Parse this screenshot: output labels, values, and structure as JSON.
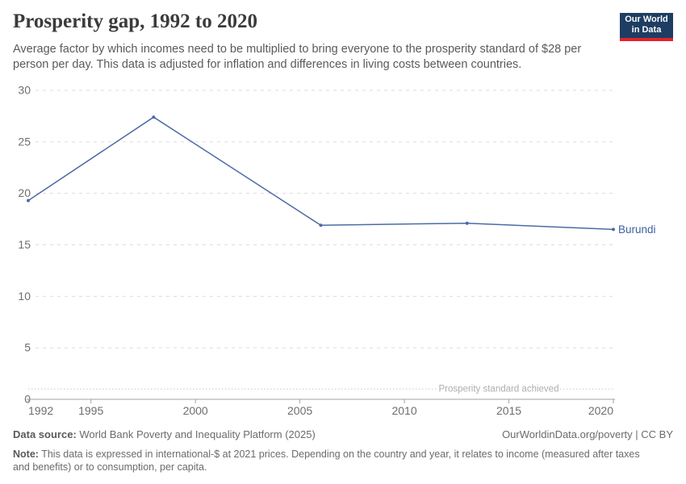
{
  "header": {
    "title": "Prosperity gap, 1992 to 2020",
    "subtitle_line1": "Average factor by which incomes need to be multiplied to bring everyone to the prosperity standard of $28 per",
    "subtitle_line2": "person per day. This data is adjusted for inflation and differences in living costs between countries."
  },
  "logo": {
    "line1": "Our World",
    "line2": "in Data",
    "bg_color": "#1d3d63",
    "bar_color": "#e0232e"
  },
  "chart_data": {
    "type": "line",
    "title": "Prosperity gap, 1992 to 2020",
    "x": [
      1992,
      1998,
      2006,
      2013,
      2020
    ],
    "series": [
      {
        "name": "Burundi",
        "values": [
          19.3,
          27.4,
          16.9,
          17.1,
          16.5
        ],
        "color": "#4c6ba5",
        "label_color": "#3d5fa0"
      }
    ],
    "xlabel": "",
    "ylabel": "",
    "xlim": [
      1992,
      2020
    ],
    "ylim": [
      0,
      30
    ],
    "xticks": [
      1992,
      1995,
      2000,
      2005,
      2010,
      2015,
      2020
    ],
    "yticks": [
      0,
      5,
      10,
      15,
      20,
      25,
      30
    ],
    "grid": "horizontal-dashed",
    "legend_position": "line-end-label",
    "annotation_line": {
      "value": 1,
      "label": "Prosperity standard achieved"
    }
  },
  "footer": {
    "source_label": "Data source:",
    "source_text": "World Bank Poverty and Inequality Platform (2025)",
    "attribution": "OurWorldinData.org/poverty | CC BY",
    "note_label": "Note:",
    "note_line1": "This data is expressed in international-$ at 2021 prices. Depending on the country and year, it relates to income (measured after taxes",
    "note_line2": "and benefits) or to consumption, per capita."
  },
  "colors": {
    "title_text": "#3b3b3b",
    "body_text": "#5a5a5a",
    "axis_labels": "#6e6e6e",
    "gridline": "#dcdcdc",
    "axis_line": "#a1a1a1",
    "annotation_text": "#adadad"
  }
}
